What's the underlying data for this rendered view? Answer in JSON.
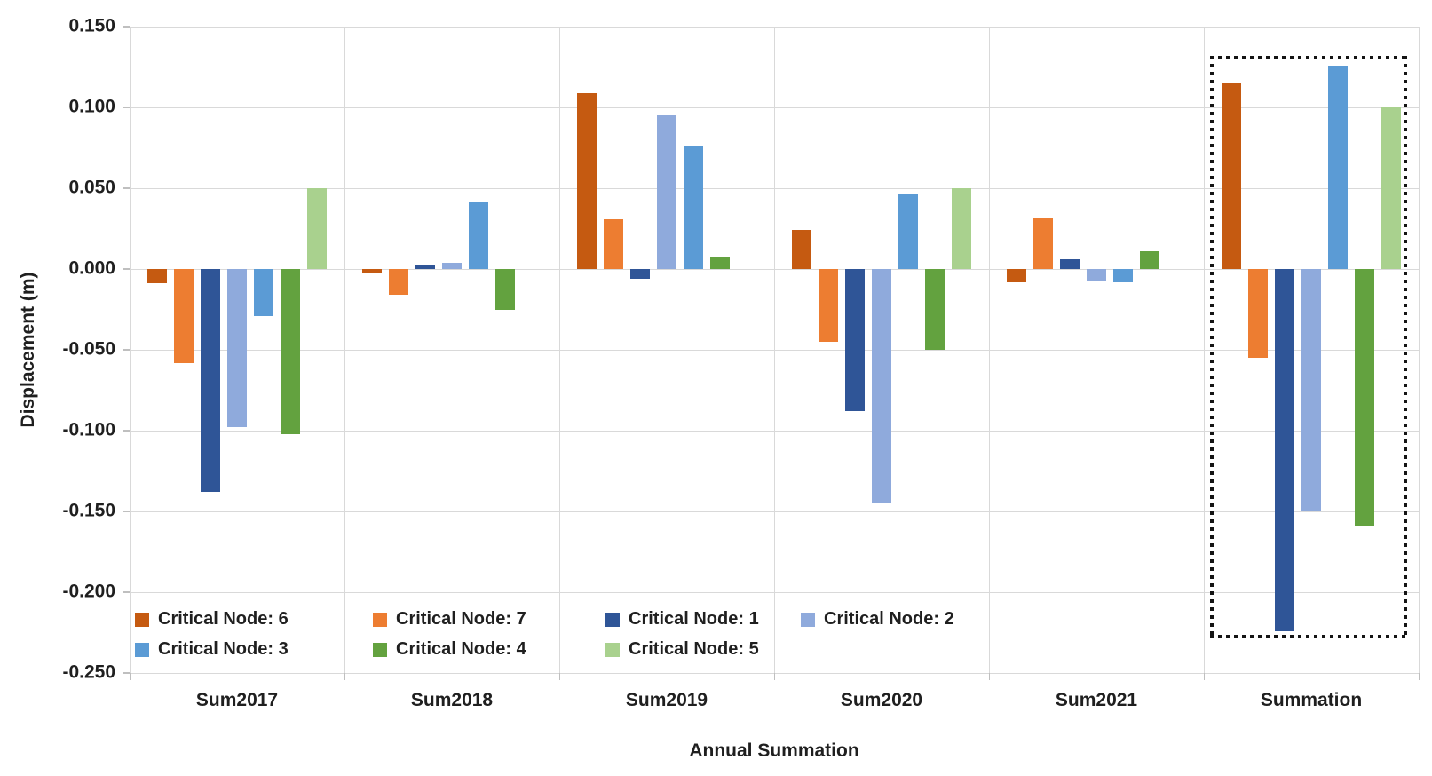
{
  "chart_data": {
    "type": "bar",
    "title": "",
    "xlabel": "Annual Summation",
    "ylabel": "Displacement (m)",
    "categories": [
      "Sum2017",
      "Sum2018",
      "Sum2019",
      "Sum2020",
      "Sum2021",
      "Summation"
    ],
    "series": [
      {
        "name": "Critical Node: 6",
        "color": "#C55A11",
        "values": [
          -0.009,
          -0.002,
          0.109,
          0.024,
          -0.008,
          0.115
        ]
      },
      {
        "name": "Critical Node: 7",
        "color": "#ED7D31",
        "values": [
          -0.058,
          -0.016,
          0.031,
          -0.045,
          0.032,
          -0.055
        ]
      },
      {
        "name": "Critical Node: 1",
        "color": "#2F5597",
        "values": [
          -0.138,
          0.003,
          -0.006,
          -0.088,
          0.006,
          -0.224
        ]
      },
      {
        "name": "Critical Node: 2",
        "color": "#8FAADC",
        "values": [
          -0.098,
          0.004,
          0.095,
          -0.145,
          -0.007,
          -0.15
        ]
      },
      {
        "name": "Critical Node: 3",
        "color": "#5B9BD5",
        "values": [
          -0.029,
          0.041,
          0.076,
          0.046,
          -0.008,
          0.126
        ]
      },
      {
        "name": "Critical Node: 4",
        "color": "#63A23F",
        "values": [
          -0.102,
          -0.025,
          0.007,
          -0.05,
          0.011,
          -0.159
        ]
      },
      {
        "name": "Critical Node: 5",
        "color": "#A9D18E",
        "values": [
          0.05,
          0,
          0,
          0.05,
          0,
          0.1
        ]
      }
    ],
    "ylim": [
      -0.25,
      0.15
    ],
    "ytick_step": 0.05,
    "ytick_labels": [
      "0.150",
      "0.100",
      "0.050",
      "0.000",
      "-0.050",
      "-0.100",
      "-0.150",
      "-0.200",
      "-0.250"
    ],
    "grid": true,
    "grid_color": "#D9D9D9",
    "legend_position": "inside-bottom-left",
    "legend_rows": [
      [
        0,
        1,
        2,
        3
      ],
      [
        4,
        5,
        6
      ]
    ],
    "annotation": {
      "style": "dotted-box",
      "around_category": "Summation",
      "color": "#141414"
    }
  }
}
